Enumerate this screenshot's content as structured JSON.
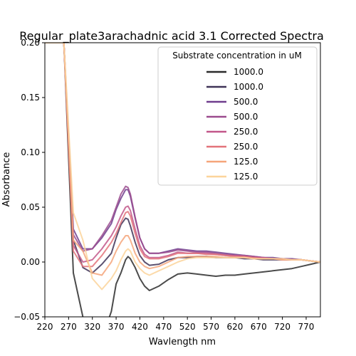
{
  "chart_data": {
    "type": "line",
    "title": "Regular_plate3arachadnic acid 3.1 Corrected Spectra",
    "xlabel": "Wavlength nm",
    "ylabel": "Absorbance",
    "xlim": [
      220,
      800
    ],
    "ylim": [
      -0.05,
      0.2
    ],
    "xticks": [
      "220",
      "270",
      "320",
      "370",
      "420",
      "470",
      "520",
      "570",
      "620",
      "670",
      "720",
      "770"
    ],
    "yticks": [
      "−0.05",
      "0.00",
      "0.05",
      "0.10",
      "0.15",
      "0.20"
    ],
    "grid": false,
    "legend": {
      "title": "Substrate concentration in uM",
      "placement": "upper-right"
    },
    "x": [
      220,
      240,
      260,
      280,
      300,
      320,
      340,
      360,
      370,
      380,
      390,
      395,
      400,
      410,
      420,
      430,
      440,
      460,
      480,
      500,
      520,
      540,
      560,
      580,
      600,
      620,
      640,
      660,
      680,
      700,
      720,
      740,
      760,
      780,
      800
    ],
    "series": [
      {
        "name": "1000.0",
        "color": "#2b2b2b",
        "values": [
          0.2,
          0.2,
          0.2,
          -0.01,
          -0.05,
          -0.09,
          -0.07,
          -0.045,
          -0.02,
          -0.01,
          0.002,
          0.005,
          0.003,
          -0.005,
          -0.015,
          -0.022,
          -0.026,
          -0.022,
          -0.016,
          -0.011,
          -0.01,
          -0.011,
          -0.012,
          -0.013,
          -0.012,
          -0.012,
          -0.011,
          -0.01,
          -0.009,
          -0.008,
          -0.007,
          -0.006,
          -0.004,
          -0.002,
          0.0
        ]
      },
      {
        "name": "1000.0",
        "color": "#3f3357",
        "values": [
          0.2,
          0.2,
          0.2,
          0.02,
          -0.005,
          -0.01,
          -0.002,
          0.008,
          0.022,
          0.034,
          0.04,
          0.039,
          0.033,
          0.018,
          0.006,
          0.0,
          -0.003,
          -0.002,
          0.002,
          0.004,
          0.004,
          0.005,
          0.005,
          0.004,
          0.004,
          0.004,
          0.003,
          0.003,
          0.002,
          0.002,
          0.002,
          0.002,
          0.002,
          0.001,
          0.0
        ]
      },
      {
        "name": "500.0",
        "color": "#6f3d8d",
        "values": [
          0.2,
          0.2,
          0.2,
          0.03,
          0.012,
          0.012,
          0.022,
          0.035,
          0.048,
          0.058,
          0.066,
          0.066,
          0.06,
          0.04,
          0.022,
          0.012,
          0.008,
          0.008,
          0.01,
          0.012,
          0.011,
          0.01,
          0.01,
          0.009,
          0.008,
          0.007,
          0.006,
          0.005,
          0.004,
          0.004,
          0.003,
          0.003,
          0.002,
          0.001,
          0.0
        ]
      },
      {
        "name": "500.0",
        "color": "#9b4b8e",
        "values": [
          0.2,
          0.2,
          0.2,
          0.025,
          0.01,
          0.012,
          0.024,
          0.038,
          0.05,
          0.062,
          0.069,
          0.068,
          0.062,
          0.041,
          0.022,
          0.012,
          0.008,
          0.008,
          0.009,
          0.011,
          0.01,
          0.009,
          0.009,
          0.008,
          0.007,
          0.006,
          0.006,
          0.005,
          0.004,
          0.003,
          0.003,
          0.002,
          0.002,
          0.001,
          0.0
        ]
      },
      {
        "name": "250.0",
        "color": "#c2578a",
        "values": [
          0.2,
          0.2,
          0.2,
          0.015,
          0.0,
          0.002,
          0.012,
          0.024,
          0.032,
          0.042,
          0.05,
          0.051,
          0.047,
          0.03,
          0.015,
          0.007,
          0.004,
          0.004,
          0.006,
          0.009,
          0.008,
          0.008,
          0.008,
          0.007,
          0.006,
          0.006,
          0.005,
          0.004,
          0.004,
          0.003,
          0.003,
          0.002,
          0.002,
          0.001,
          0.0
        ]
      },
      {
        "name": "250.0",
        "color": "#e3737a",
        "values": [
          0.2,
          0.2,
          0.2,
          0.01,
          -0.004,
          -0.004,
          0.006,
          0.018,
          0.026,
          0.036,
          0.045,
          0.046,
          0.042,
          0.026,
          0.012,
          0.005,
          0.003,
          0.003,
          0.005,
          0.008,
          0.008,
          0.008,
          0.007,
          0.007,
          0.006,
          0.005,
          0.005,
          0.004,
          0.003,
          0.003,
          0.002,
          0.002,
          0.002,
          0.001,
          0.0
        ]
      },
      {
        "name": "125.0",
        "color": "#f5a57a",
        "values": [
          0.2,
          0.2,
          0.2,
          0.02,
          0.01,
          -0.01,
          -0.012,
          0.0,
          0.01,
          0.018,
          0.024,
          0.024,
          0.02,
          0.008,
          0.0,
          -0.004,
          -0.006,
          -0.004,
          0.0,
          0.004,
          0.005,
          0.005,
          0.005,
          0.005,
          0.004,
          0.004,
          0.004,
          0.003,
          0.003,
          0.003,
          0.002,
          0.002,
          0.002,
          0.001,
          0.0
        ]
      },
      {
        "name": "125.0",
        "color": "#fcd49a",
        "values": [
          0.2,
          0.2,
          0.2,
          0.045,
          0.02,
          -0.015,
          -0.025,
          -0.015,
          -0.008,
          0.002,
          0.01,
          0.012,
          0.01,
          0.0,
          -0.006,
          -0.01,
          -0.012,
          -0.008,
          -0.004,
          0.0,
          0.003,
          0.004,
          0.004,
          0.004,
          0.004,
          0.004,
          0.004,
          0.003,
          0.003,
          0.003,
          0.003,
          0.002,
          0.002,
          0.001,
          0.0
        ]
      }
    ]
  }
}
